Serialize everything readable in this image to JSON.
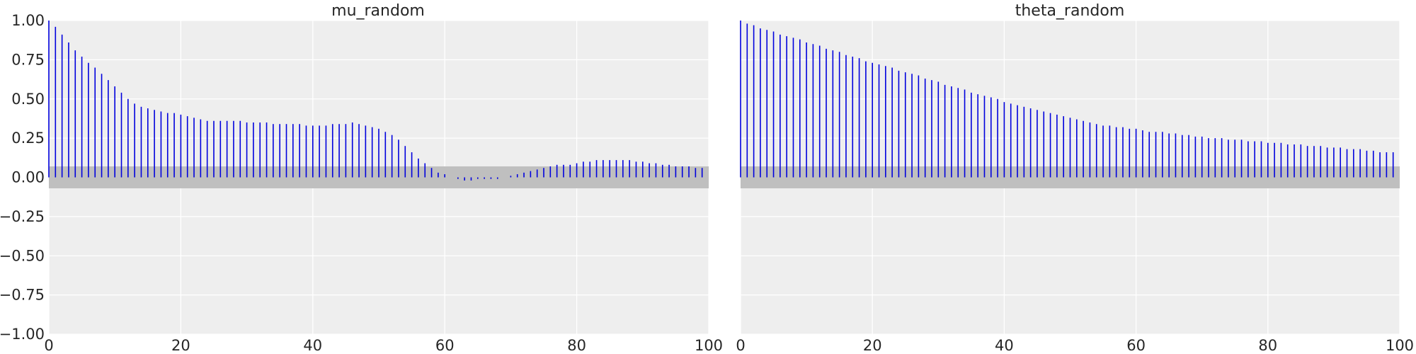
{
  "colors": {
    "figure_background": "#ffffff",
    "plot_background": "#eeeeee",
    "grid": "#ffffff",
    "bars": "#0000dd",
    "confidence_band": "#bfbfbf",
    "text": "#262626"
  },
  "chart_data": [
    {
      "type": "bar",
      "chart_style": "autocorrelation stem plot (vertical lines from 0)",
      "title": "mu_random",
      "xlabel": "",
      "ylabel": "",
      "xlim": [
        0,
        100
      ],
      "ylim": [
        -1.0,
        1.0
      ],
      "x_ticks": [
        0,
        20,
        40,
        60,
        80,
        100
      ],
      "y_ticks": [
        -1.0,
        -0.75,
        -0.5,
        -0.25,
        0.0,
        0.25,
        0.5,
        0.75,
        1.0
      ],
      "y_tick_labels": [
        "−1.00",
        "−0.75",
        "−0.50",
        "−0.25",
        "0.00",
        "0.25",
        "0.50",
        "0.75",
        "1.00"
      ],
      "grid": true,
      "confidence_band": [
        -0.07,
        0.07
      ],
      "lags": [
        0,
        1,
        2,
        3,
        4,
        5,
        6,
        7,
        8,
        9,
        10,
        11,
        12,
        13,
        14,
        15,
        16,
        17,
        18,
        19,
        20,
        21,
        22,
        23,
        24,
        25,
        26,
        27,
        28,
        29,
        30,
        31,
        32,
        33,
        34,
        35,
        36,
        37,
        38,
        39,
        40,
        41,
        42,
        43,
        44,
        45,
        46,
        47,
        48,
        49,
        50,
        51,
        52,
        53,
        54,
        55,
        56,
        57,
        58,
        59,
        60,
        61,
        62,
        63,
        64,
        65,
        66,
        67,
        68,
        69,
        70,
        71,
        72,
        73,
        74,
        75,
        76,
        77,
        78,
        79,
        80,
        81,
        82,
        83,
        84,
        85,
        86,
        87,
        88,
        89,
        90,
        91,
        92,
        93,
        94,
        95,
        96,
        97,
        98,
        99
      ],
      "values": [
        1.0,
        0.96,
        0.91,
        0.86,
        0.81,
        0.77,
        0.73,
        0.7,
        0.66,
        0.62,
        0.58,
        0.54,
        0.5,
        0.47,
        0.45,
        0.44,
        0.43,
        0.42,
        0.41,
        0.41,
        0.4,
        0.39,
        0.38,
        0.37,
        0.36,
        0.36,
        0.36,
        0.36,
        0.36,
        0.36,
        0.35,
        0.35,
        0.35,
        0.35,
        0.34,
        0.34,
        0.34,
        0.34,
        0.34,
        0.33,
        0.33,
        0.33,
        0.33,
        0.34,
        0.34,
        0.34,
        0.35,
        0.34,
        0.33,
        0.32,
        0.31,
        0.29,
        0.27,
        0.24,
        0.2,
        0.16,
        0.12,
        0.09,
        0.06,
        0.03,
        0.02,
        0.0,
        -0.01,
        -0.02,
        -0.02,
        -0.01,
        -0.01,
        -0.01,
        -0.01,
        0.0,
        0.01,
        0.02,
        0.03,
        0.04,
        0.05,
        0.06,
        0.07,
        0.08,
        0.08,
        0.08,
        0.09,
        0.1,
        0.1,
        0.11,
        0.11,
        0.11,
        0.11,
        0.11,
        0.11,
        0.1,
        0.1,
        0.09,
        0.09,
        0.08,
        0.08,
        0.07,
        0.07,
        0.07,
        0.06,
        0.06
      ]
    },
    {
      "type": "bar",
      "chart_style": "autocorrelation stem plot (vertical lines from 0)",
      "title": "theta_random",
      "xlabel": "",
      "ylabel": "",
      "xlim": [
        0,
        100
      ],
      "ylim": [
        -1.0,
        1.0
      ],
      "x_ticks": [
        0,
        20,
        40,
        60,
        80,
        100
      ],
      "y_ticks": [],
      "grid": true,
      "confidence_band": [
        -0.07,
        0.07
      ],
      "lags": [
        0,
        1,
        2,
        3,
        4,
        5,
        6,
        7,
        8,
        9,
        10,
        11,
        12,
        13,
        14,
        15,
        16,
        17,
        18,
        19,
        20,
        21,
        22,
        23,
        24,
        25,
        26,
        27,
        28,
        29,
        30,
        31,
        32,
        33,
        34,
        35,
        36,
        37,
        38,
        39,
        40,
        41,
        42,
        43,
        44,
        45,
        46,
        47,
        48,
        49,
        50,
        51,
        52,
        53,
        54,
        55,
        56,
        57,
        58,
        59,
        60,
        61,
        62,
        63,
        64,
        65,
        66,
        67,
        68,
        69,
        70,
        71,
        72,
        73,
        74,
        75,
        76,
        77,
        78,
        79,
        80,
        81,
        82,
        83,
        84,
        85,
        86,
        87,
        88,
        89,
        90,
        91,
        92,
        93,
        94,
        95,
        96,
        97,
        98,
        99
      ],
      "values": [
        1.0,
        0.98,
        0.97,
        0.95,
        0.94,
        0.93,
        0.91,
        0.9,
        0.89,
        0.88,
        0.86,
        0.85,
        0.84,
        0.82,
        0.81,
        0.8,
        0.78,
        0.77,
        0.76,
        0.74,
        0.73,
        0.72,
        0.71,
        0.7,
        0.68,
        0.67,
        0.66,
        0.65,
        0.63,
        0.62,
        0.61,
        0.59,
        0.58,
        0.57,
        0.56,
        0.54,
        0.53,
        0.52,
        0.51,
        0.5,
        0.48,
        0.47,
        0.46,
        0.45,
        0.44,
        0.43,
        0.42,
        0.41,
        0.4,
        0.39,
        0.38,
        0.37,
        0.36,
        0.35,
        0.34,
        0.33,
        0.33,
        0.32,
        0.32,
        0.31,
        0.31,
        0.3,
        0.29,
        0.29,
        0.29,
        0.28,
        0.28,
        0.27,
        0.27,
        0.26,
        0.26,
        0.25,
        0.25,
        0.25,
        0.24,
        0.24,
        0.24,
        0.23,
        0.23,
        0.23,
        0.22,
        0.22,
        0.22,
        0.21,
        0.21,
        0.21,
        0.2,
        0.2,
        0.2,
        0.19,
        0.19,
        0.19,
        0.18,
        0.18,
        0.18,
        0.17,
        0.17,
        0.16,
        0.16,
        0.16
      ]
    }
  ]
}
